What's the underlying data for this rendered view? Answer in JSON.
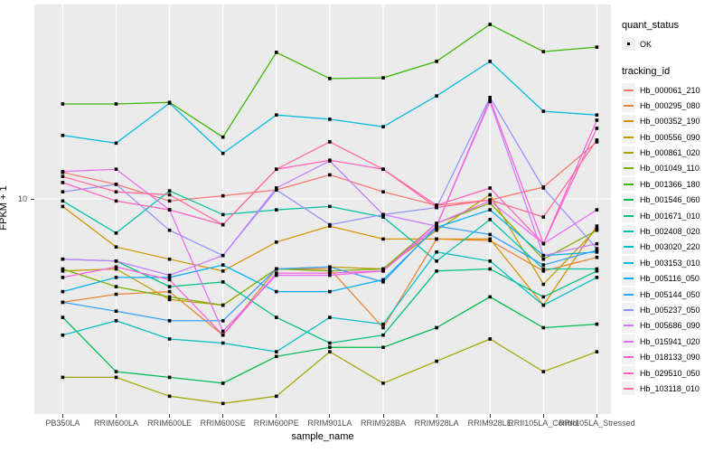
{
  "axes": {
    "x_title": "sample_name",
    "y_title": "FPKM + 1",
    "y_tick_label": "10"
  },
  "legend": {
    "quant_status_title": "quant_status",
    "quant_status_items": [
      {
        "label": "OK",
        "symbol": "black-point"
      }
    ],
    "tracking_title": "tracking_id"
  },
  "colors": {
    "panel_bg": "#EBEBEB",
    "grid": "#FFFFFF",
    "point": "#000000",
    "axis_text": "#4D4D4D",
    "legend_key_bg": "#F2F2F2"
  },
  "chart_data": {
    "type": "line",
    "title": "",
    "xlabel": "sample_name",
    "ylabel": "FPKM + 1",
    "yscale": "log10",
    "y_ticks": [
      10
    ],
    "ylim": [
      1.3,
      60
    ],
    "grid": "major",
    "legend_position": "right",
    "point_shape": "small-black-square",
    "quant_status": "OK",
    "categories": [
      "PB350LA",
      "RRIM600LA",
      "RRIM600LE",
      "RRIM600SE",
      "RRIM600PE",
      "RRIM901LA",
      "RRIM928BA",
      "RRIM928LA",
      "RRIM928LE",
      "RRII105LA_Control",
      "RRII105LA_Stressed"
    ],
    "series": [
      {
        "name": "Hb_000061_210",
        "color": "#F8766D",
        "values": [
          12.9,
          11.5,
          9.8,
          10.3,
          10.9,
          12.6,
          10.7,
          9.4,
          9.9,
          11.2,
          17.3
        ]
      },
      {
        "name": "Hb_000295_080",
        "color": "#EA8331",
        "values": [
          3.7,
          4.0,
          4.1,
          2.7,
          5.1,
          5.1,
          2.9,
          6.8,
          6.7,
          5.0,
          5.7
        ]
      },
      {
        "name": "Hb_000352_190",
        "color": "#D89000",
        "values": [
          9.3,
          6.3,
          5.6,
          5.0,
          6.6,
          7.7,
          6.8,
          6.8,
          6.8,
          3.6,
          7.7
        ]
      },
      {
        "name": "Hb_000556_090",
        "color": "#C09B00",
        "values": [
          5.0,
          5.1,
          3.8,
          3.6,
          5.1,
          5.2,
          5.1,
          7.4,
          10.4,
          4.4,
          7.5
        ]
      },
      {
        "name": "Hb_000861_020",
        "color": "#A3A500",
        "values": [
          1.8,
          1.8,
          1.5,
          1.4,
          1.5,
          2.3,
          1.7,
          2.1,
          2.6,
          1.9,
          2.3
        ]
      },
      {
        "name": "Hb_001049_110",
        "color": "#7CAE00",
        "values": [
          5.1,
          4.3,
          3.9,
          3.6,
          5.1,
          5.0,
          5.1,
          7.9,
          9.6,
          5.6,
          7.4
        ]
      },
      {
        "name": "Hb_001366_180",
        "color": "#39B600",
        "values": [
          24.9,
          24.9,
          25.3,
          18.1,
          40.9,
          31.8,
          32.0,
          37.5,
          53.5,
          41.2,
          43.0
        ]
      },
      {
        "name": "Hb_001546_060",
        "color": "#00BB4E",
        "values": [
          3.2,
          1.9,
          1.8,
          1.7,
          2.2,
          2.4,
          2.4,
          2.9,
          3.9,
          2.9,
          3.0
        ]
      },
      {
        "name": "Hb_001671_010",
        "color": "#00BF7D",
        "values": [
          5.6,
          5.5,
          4.3,
          4.5,
          3.2,
          2.5,
          2.7,
          5.0,
          5.1,
          3.9,
          5.0
        ]
      },
      {
        "name": "Hb_002408_020",
        "color": "#00C1A3",
        "values": [
          9.8,
          7.2,
          10.8,
          8.6,
          9.0,
          9.3,
          8.4,
          5.5,
          8.2,
          5.1,
          5.1
        ]
      },
      {
        "name": "Hb_003020_220",
        "color": "#00BFC4",
        "values": [
          2.7,
          3.1,
          2.6,
          2.5,
          2.3,
          3.2,
          3.0,
          6.0,
          5.5,
          3.6,
          4.7
        ]
      },
      {
        "name": "Hb_003153_010",
        "color": "#00BAE0",
        "values": [
          18.4,
          17.1,
          25.1,
          15.5,
          22.4,
          21.5,
          20.0,
          26.9,
          37.5,
          23.2,
          22.4
        ]
      },
      {
        "name": "Hb_005116_050",
        "color": "#00B0F6",
        "values": [
          4.1,
          4.7,
          4.7,
          5.3,
          4.1,
          4.1,
          4.6,
          7.6,
          9.0,
          5.8,
          6.0
        ]
      },
      {
        "name": "Hb_005144_050",
        "color": "#35A2FF",
        "values": [
          3.7,
          3.4,
          3.1,
          3.1,
          5.1,
          5.2,
          4.5,
          7.7,
          7.1,
          5.3,
          6.1
        ]
      },
      {
        "name": "Hb_005237_050",
        "color": "#9590FF",
        "values": [
          10.7,
          11.5,
          7.4,
          5.8,
          10.9,
          7.8,
          8.6,
          9.2,
          26.5,
          11.1,
          6.2
        ]
      },
      {
        "name": "Hb_005686_090",
        "color": "#C77CFF",
        "values": [
          5.6,
          5.5,
          4.8,
          5.8,
          11.1,
          14.4,
          8.6,
          7.7,
          25.5,
          5.8,
          6.5
        ]
      },
      {
        "name": "Hb_015941_020",
        "color": "#E76BF3",
        "values": [
          13.0,
          13.3,
          9.0,
          2.8,
          4.8,
          4.8,
          5.0,
          7.9,
          9.8,
          6.5,
          9.0
        ]
      },
      {
        "name": "Hb_018133_090",
        "color": "#FA62DB",
        "values": [
          4.7,
          5.2,
          4.6,
          2.7,
          4.9,
          4.9,
          5.0,
          7.7,
          26.0,
          6.5,
          21.3
        ]
      },
      {
        "name": "Hb_029510_050",
        "color": "#FF62BC",
        "values": [
          11.7,
          9.8,
          9.0,
          7.8,
          13.3,
          14.5,
          13.3,
          9.4,
          11.1,
          6.5,
          19.7
        ]
      },
      {
        "name": "Hb_103118_010",
        "color": "#FF6A98",
        "values": [
          12.4,
          10.7,
          10.4,
          7.8,
          13.3,
          17.3,
          13.3,
          9.2,
          9.9,
          8.4,
          17.6
        ]
      }
    ]
  }
}
